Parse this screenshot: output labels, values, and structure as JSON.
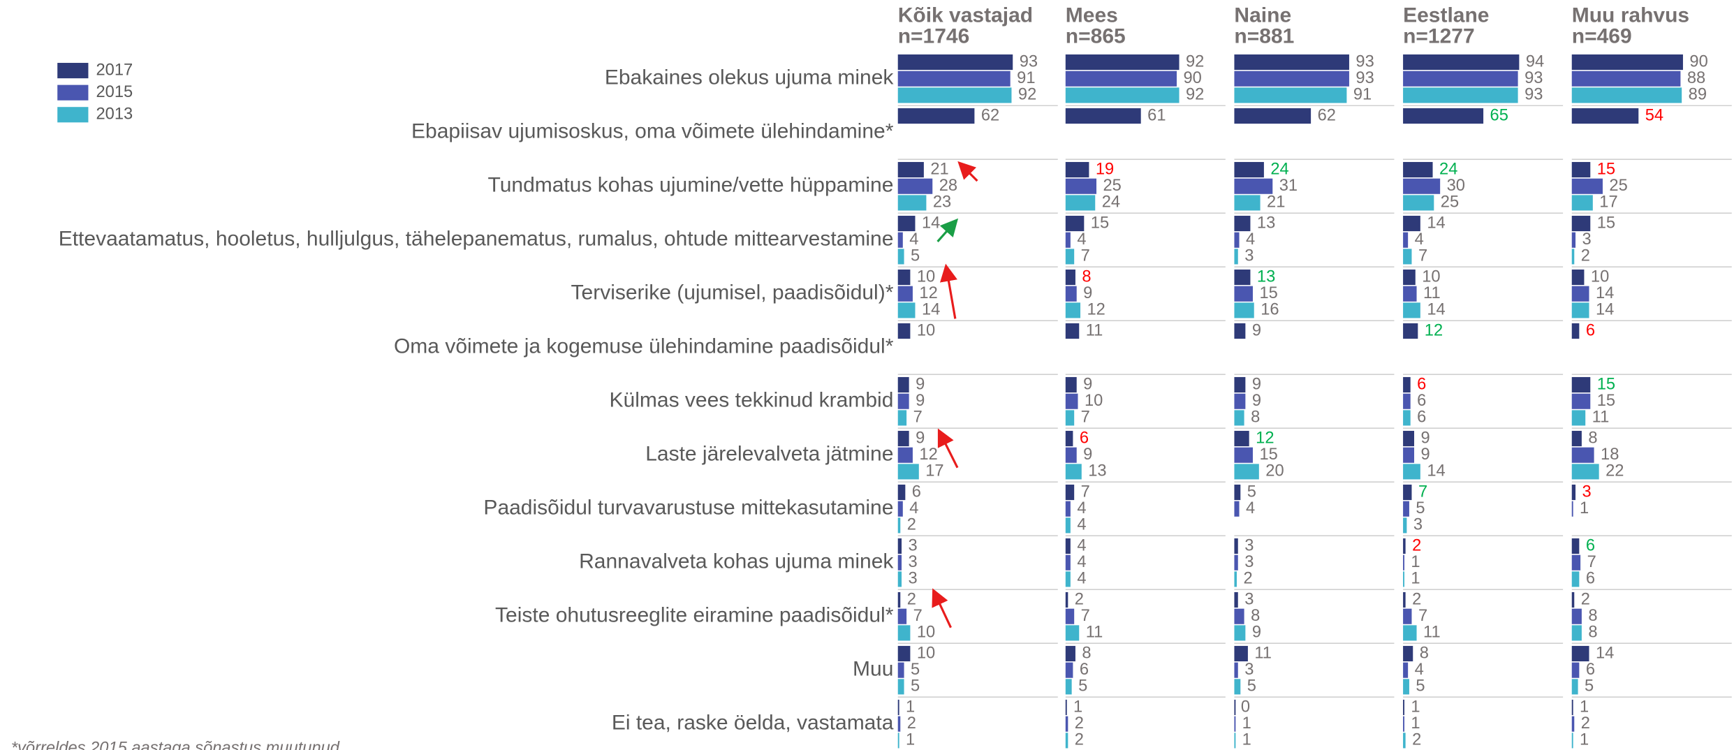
{
  "chart_data": {
    "type": "bar",
    "orientation": "horizontal",
    "footnote": "*võrreldes 2015 aastaga sõnastus muutunud",
    "series": [
      {
        "name": "2017",
        "color": "#2e3a78"
      },
      {
        "name": "2015",
        "color": "#4a56b0"
      },
      {
        "name": "2013",
        "color": "#3fb4cc"
      }
    ],
    "label_color": "#767171",
    "xlim": [
      0,
      100
    ],
    "categories": [
      "Ebakaines olekus ujuma minek",
      "Ebapiisav ujumisoskus, oma võimete ülehindamine*",
      "Tundmatus kohas ujumine/vette hüppamine",
      "Ettevaatamatus, hooletus, hulljulgus, tähelepanematus, rumalus, ohtude mittearvestamine",
      "Terviserike (ujumisel, paadisõidul)*",
      "Oma võimete ja kogemuse ülehindamine paadisõidul*",
      "Külmas vees tekkinud krambid",
      "Laste järelevalveta jätmine",
      "Paadisõidul turvavarustuse mittekasutamine",
      "Rannavalveta kohas ujuma minek",
      "Teiste ohutusreeglite eiramine paadisõidul*",
      "Muu",
      "Ei tea, raske öelda, vastamata"
    ],
    "panels": [
      {
        "title": "Kõik vastajad",
        "subtitle": "n=1746",
        "values": [
          [
            93,
            62,
            21,
            14,
            10,
            10,
            9,
            9,
            6,
            3,
            2,
            10,
            1
          ],
          [
            91,
            null,
            28,
            4,
            12,
            null,
            9,
            12,
            4,
            3,
            7,
            5,
            2
          ],
          [
            92,
            null,
            23,
            5,
            14,
            null,
            7,
            17,
            2,
            3,
            10,
            5,
            1
          ]
        ],
        "label_colors": [
          "#767171",
          "#767171",
          "#767171",
          "#767171",
          "#767171",
          "#767171",
          "#767171",
          "#767171",
          "#767171",
          "#767171",
          "#767171",
          "#767171",
          "#767171"
        ]
      },
      {
        "title": "Mees",
        "subtitle": "n=865",
        "values": [
          [
            92,
            61,
            19,
            15,
            8,
            11,
            9,
            6,
            7,
            4,
            2,
            8,
            1
          ],
          [
            90,
            null,
            25,
            4,
            9,
            null,
            10,
            9,
            4,
            4,
            7,
            6,
            2
          ],
          [
            92,
            null,
            24,
            7,
            12,
            null,
            7,
            13,
            4,
            4,
            11,
            5,
            2
          ]
        ],
        "label_colors": [
          "#767171",
          "#767171",
          "#ff0000",
          "#767171",
          "#ff0000",
          "#767171",
          "#767171",
          "#ff0000",
          "#767171",
          "#767171",
          "#767171",
          "#767171",
          "#767171"
        ]
      },
      {
        "title": "Naine",
        "subtitle": "n=881",
        "values": [
          [
            93,
            62,
            24,
            13,
            13,
            9,
            9,
            12,
            5,
            3,
            3,
            11,
            0
          ],
          [
            93,
            null,
            31,
            4,
            15,
            null,
            9,
            15,
            4,
            3,
            8,
            3,
            1
          ],
          [
            91,
            null,
            21,
            3,
            16,
            null,
            8,
            20,
            null,
            2,
            9,
            5,
            1
          ]
        ],
        "label_colors": [
          "#767171",
          "#767171",
          "#00b050",
          "#767171",
          "#00b050",
          "#767171",
          "#767171",
          "#00b050",
          "#767171",
          "#767171",
          "#767171",
          "#767171",
          "#767171"
        ]
      },
      {
        "title": "Eestlane",
        "subtitle": "n=1277",
        "values": [
          [
            94,
            65,
            24,
            14,
            10,
            12,
            6,
            9,
            7,
            2,
            2,
            8,
            1
          ],
          [
            93,
            null,
            30,
            4,
            11,
            null,
            6,
            9,
            5,
            1,
            7,
            4,
            1
          ],
          [
            93,
            null,
            25,
            7,
            14,
            null,
            6,
            14,
            3,
            1,
            11,
            5,
            2
          ]
        ],
        "label_colors": [
          "#767171",
          "#00b050",
          "#00b050",
          "#767171",
          "#767171",
          "#00b050",
          "#ff0000",
          "#767171",
          "#00b050",
          "#ff0000",
          "#767171",
          "#767171",
          "#767171"
        ]
      },
      {
        "title": "Muu rahvus",
        "subtitle": "n=469",
        "values": [
          [
            90,
            54,
            15,
            15,
            10,
            6,
            15,
            8,
            3,
            6,
            2,
            14,
            1
          ],
          [
            88,
            null,
            25,
            3,
            14,
            null,
            15,
            18,
            1,
            7,
            8,
            6,
            2
          ],
          [
            89,
            null,
            17,
            2,
            14,
            null,
            11,
            22,
            null,
            6,
            8,
            5,
            1
          ]
        ],
        "label_colors": [
          "#767171",
          "#ff0000",
          "#ff0000",
          "#767171",
          "#767171",
          "#ff0000",
          "#00b050",
          "#767171",
          "#ff0000",
          "#00b050",
          "#767171",
          "#767171",
          "#767171"
        ]
      }
    ]
  }
}
